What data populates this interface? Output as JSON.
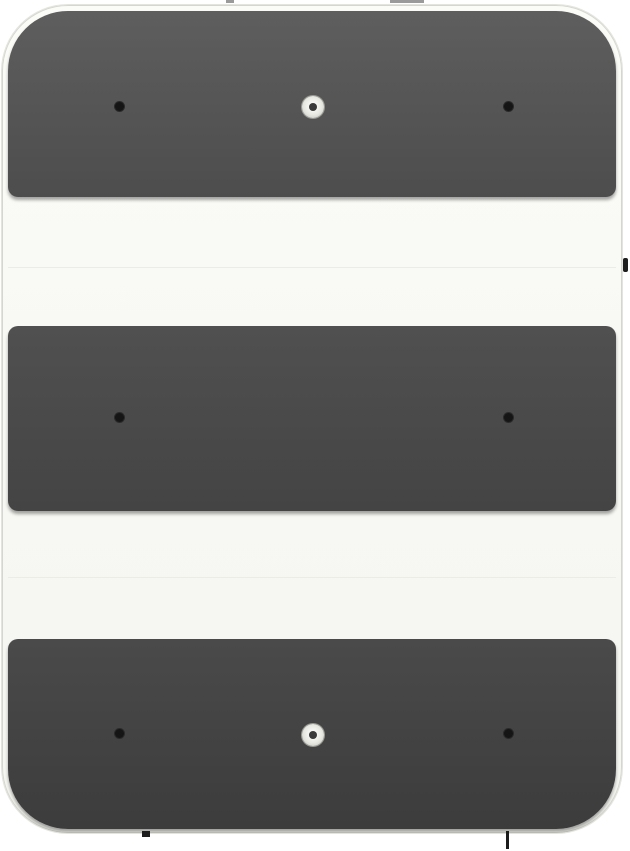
{
  "device": {
    "colors": {
      "body": "#f7f7f3",
      "panel_top": "#575757",
      "panel_middle": "#4a4a4a",
      "panel_bottom": "#434343",
      "holes": "#151515",
      "screw": "#e8e8e2"
    },
    "panels": [
      "top-panel",
      "middle-panel",
      "bottom-panel"
    ]
  }
}
